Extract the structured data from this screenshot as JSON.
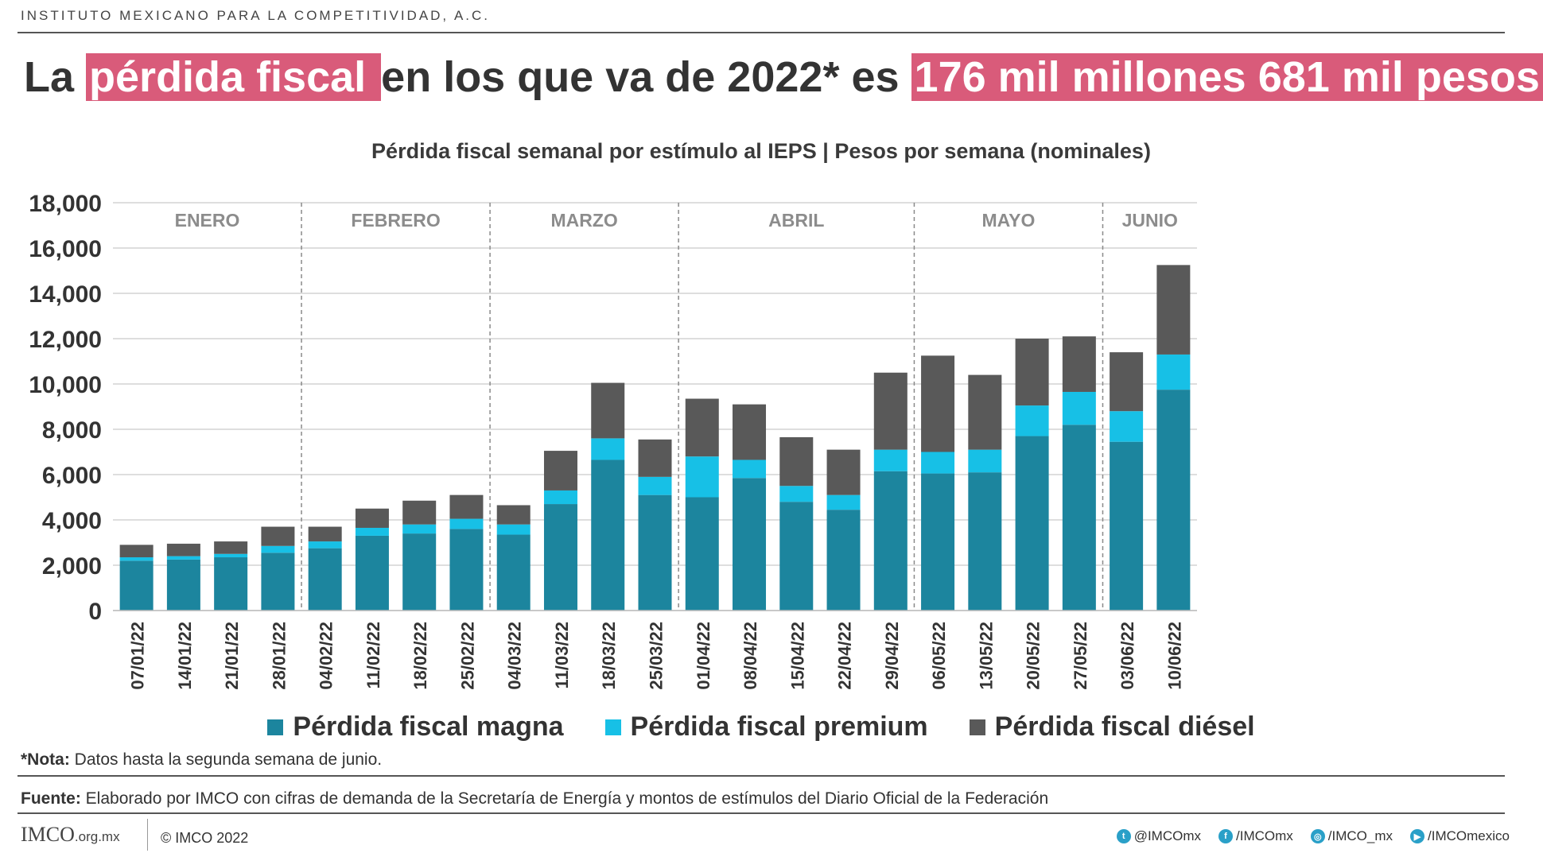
{
  "header": {
    "organization": "INSTITUTO MEXICANO PARA LA COMPETITIVIDAD, A.C.",
    "title_part1": "La ",
    "title_highlight1": "pérdida fiscal ",
    "title_part2": "en los que va de 2022* es ",
    "title_highlight2": "176 mil millones 681 mil pesos",
    "highlight_color": "#d95b7a"
  },
  "chart_data": {
    "type": "bar",
    "stacked": true,
    "title": "Pérdida fiscal semanal por estímulo al IEPS | Pesos por semana (nominales)",
    "ylim": [
      0,
      18000
    ],
    "yticks": [
      "0",
      "2,000",
      "4,000",
      "6,000",
      "8,000",
      "10,000",
      "12,000",
      "14,000",
      "16,000",
      "18,000"
    ],
    "grid": true,
    "categories": [
      "07/01/22",
      "14/01/22",
      "21/01/22",
      "28/01/22",
      "04/02/22",
      "11/02/22",
      "18/02/22",
      "25/02/22",
      "04/03/22",
      "11/03/22",
      "18/03/22",
      "25/03/22",
      "01/04/22",
      "08/04/22",
      "15/04/22",
      "22/04/22",
      "29/04/22",
      "06/05/22",
      "13/05/22",
      "20/05/22",
      "27/05/22",
      "03/06/22",
      "10/06/22"
    ],
    "months": [
      {
        "label": "ENERO",
        "start": 0,
        "end": 3
      },
      {
        "label": "FEBRERO",
        "start": 4,
        "end": 7
      },
      {
        "label": "MARZO",
        "start": 8,
        "end": 11
      },
      {
        "label": "ABRIL",
        "start": 12,
        "end": 16
      },
      {
        "label": "MAYO",
        "start": 17,
        "end": 20
      },
      {
        "label": "JUNIO",
        "start": 21,
        "end": 22
      }
    ],
    "series": [
      {
        "name": "Pérdida fiscal magna",
        "color": "#1c859e",
        "values": [
          2200,
          2250,
          2350,
          2550,
          2750,
          3300,
          3400,
          3600,
          3350,
          4700,
          6650,
          5100,
          5000,
          5850,
          4800,
          4450,
          6150,
          6050,
          6100,
          7700,
          8200,
          7450,
          9750
        ]
      },
      {
        "name": "Pérdida fiscal premium",
        "color": "#17c0e6",
        "values": [
          150,
          150,
          150,
          300,
          300,
          350,
          400,
          450,
          450,
          600,
          950,
          800,
          1800,
          800,
          700,
          650,
          950,
          950,
          1000,
          1350,
          1450,
          1350,
          1550
        ]
      },
      {
        "name": "Pérdida fiscal diésel",
        "color": "#595959",
        "values": [
          550,
          550,
          550,
          850,
          650,
          850,
          1050,
          1050,
          850,
          1750,
          2450,
          1650,
          2550,
          2450,
          2150,
          2000,
          3400,
          4250,
          3300,
          2950,
          2450,
          2600,
          3950
        ]
      }
    ],
    "legend_position": "bottom"
  },
  "footer": {
    "note_label": "*Nota:",
    "note_text": " Datos hasta la segunda semana de junio.",
    "source_label": "Fuente:",
    "source_text": " Elaborado por IMCO con cifras de demanda de la Secretaría de Energía y montos de estímulos del Diario Oficial de la Federación",
    "logo": "IMCO",
    "logo_domain": ".org.mx",
    "copyright": "© IMCO 2022",
    "social": [
      {
        "icon": "twitter-icon",
        "glyph": "t",
        "label": "@IMCOmx"
      },
      {
        "icon": "facebook-icon",
        "glyph": "f",
        "label": "/IMCOmx"
      },
      {
        "icon": "instagram-icon",
        "glyph": "◎",
        "label": "/IMCO_mx"
      },
      {
        "icon": "youtube-icon",
        "glyph": "▶",
        "label": "/IMCOmexico"
      }
    ]
  }
}
